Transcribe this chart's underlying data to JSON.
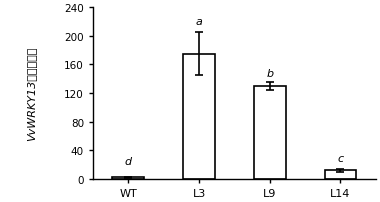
{
  "categories": [
    "WT",
    "L3",
    "L9",
    "L14"
  ],
  "values": [
    2,
    175,
    130,
    12
  ],
  "errors": [
    1,
    30,
    6,
    2
  ],
  "letters": [
    "d",
    "a",
    "b",
    "c"
  ],
  "bar_color": "white",
  "bar_edgecolor": "black",
  "bar_linewidth": 1.2,
  "bar_width": 0.45,
  "ylabel_italic": "VvWRKY13",
  "ylabel_chinese": "相对表达量",
  "ylim": [
    0,
    240
  ],
  "yticks": [
    0,
    40,
    80,
    120,
    160,
    200,
    240
  ],
  "tick_fontsize": 7.5,
  "letter_fontsize": 8,
  "xlabel_fontsize": 8,
  "ylabel_fontsize": 8,
  "figsize": [
    3.8,
    2.03
  ],
  "dpi": 100,
  "background_color": "white",
  "capsize": 3,
  "error_linewidth": 1.2,
  "x_positions": [
    0.5,
    1.5,
    2.5,
    3.5
  ],
  "xlim": [
    0,
    4
  ]
}
